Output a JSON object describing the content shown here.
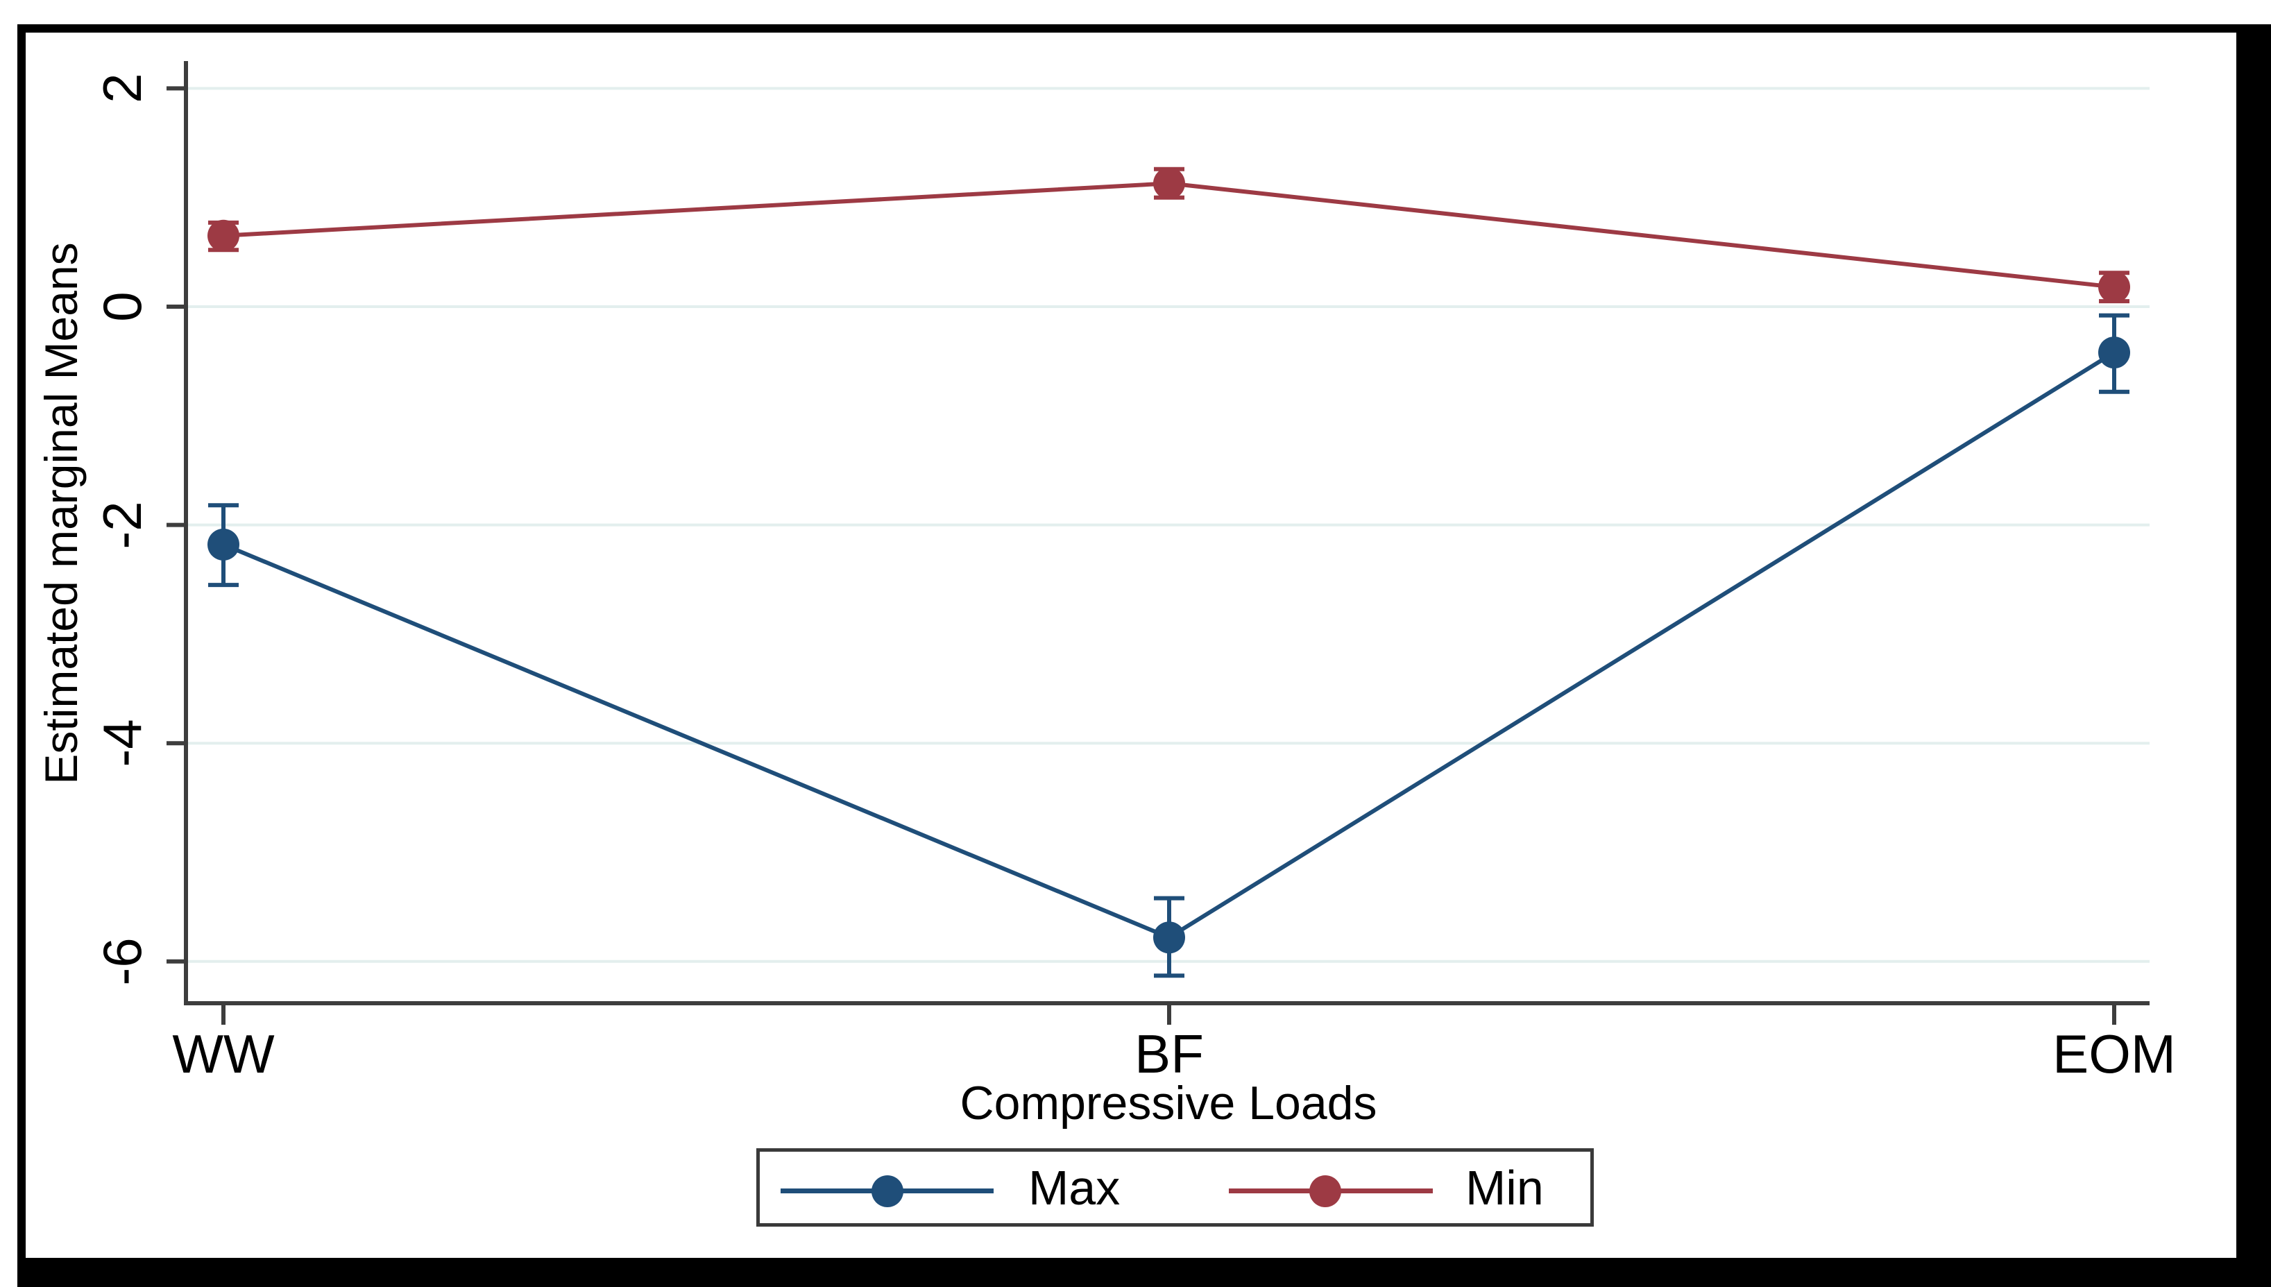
{
  "figure": {
    "background": "#ffffff",
    "frame_color": "#000000",
    "axis_color": "#3d3d3d",
    "grid_color": "#e3efee",
    "legend_border_color": "#3a3a3a",
    "text_color": "#000000"
  },
  "chart_data": {
    "type": "line",
    "title": "",
    "xlabel": "Compressive Loads",
    "ylabel": "Estimated marginal Means",
    "categories": [
      "WW",
      "BF",
      "EOM"
    ],
    "series": [
      {
        "name": "Max",
        "color": "#1f4e79",
        "values": [
          -2.18,
          -5.78,
          -0.42
        ],
        "ci_low": [
          -2.55,
          -6.13,
          -0.78
        ],
        "ci_high": [
          -1.82,
          -5.42,
          -0.08
        ]
      },
      {
        "name": "Min",
        "color": "#9d3a44",
        "values": [
          0.65,
          1.13,
          0.18
        ],
        "ci_low": [
          0.52,
          1.0,
          0.05
        ],
        "ci_high": [
          0.77,
          1.26,
          0.31
        ]
      }
    ],
    "y_ticks": [
      2,
      0,
      -2,
      -4,
      -6
    ],
    "y_tick_labels": [
      "2",
      "0",
      "-2",
      "-4",
      "-6"
    ],
    "ylim": [
      -6.4,
      2.25
    ],
    "grid": true,
    "error_bars": true,
    "legend_position": "bottom"
  }
}
